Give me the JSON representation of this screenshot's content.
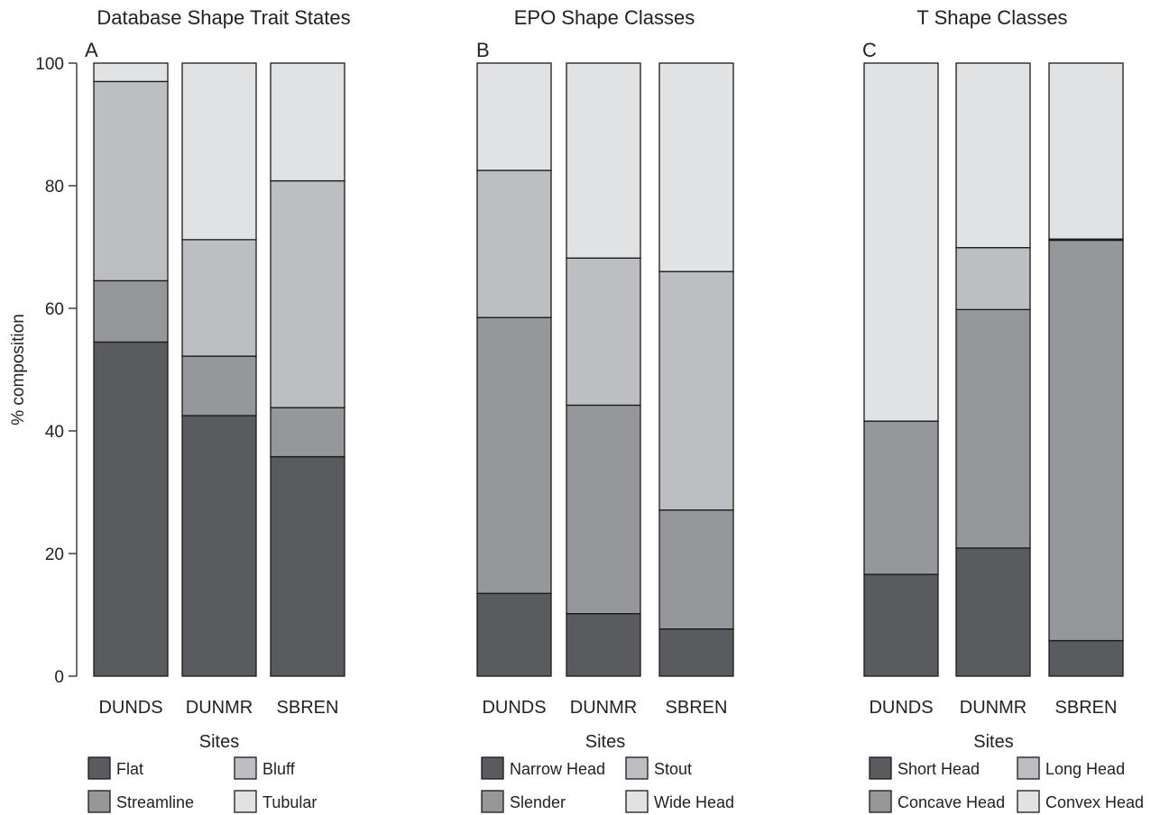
{
  "chart_data": [
    {
      "type": "bar",
      "stacked": true,
      "title": "Database Shape Trait States",
      "panel": "A",
      "xlabel": "Sites",
      "ylabel": "% composition",
      "ylim": [
        0,
        100
      ],
      "yticks": [
        0,
        20,
        40,
        60,
        80,
        100
      ],
      "categories": [
        "DUNDS",
        "DUNMR",
        "SBREN"
      ],
      "series": [
        {
          "name": "Flat",
          "values": [
            54.5,
            42.5,
            35.8
          ]
        },
        {
          "name": "Streamline",
          "values": [
            10.0,
            9.7,
            8.0
          ]
        },
        {
          "name": "Bluff",
          "values": [
            32.5,
            19.0,
            37.0
          ]
        },
        {
          "name": "Tubular",
          "values": [
            3.0,
            28.8,
            19.2
          ]
        }
      ],
      "legend": [
        {
          "name": "Flat",
          "color": "#5a5b5e"
        },
        {
          "name": "Bluff",
          "color": "#bdbec1"
        },
        {
          "name": "Streamline",
          "color": "#96979a"
        },
        {
          "name": "Tubular",
          "color": "#e1e2e4"
        }
      ]
    },
    {
      "type": "bar",
      "stacked": true,
      "title": "EPO Shape Classes",
      "panel": "B",
      "xlabel": "Sites",
      "ylim": [
        0,
        100
      ],
      "categories": [
        "DUNDS",
        "DUNMR",
        "SBREN"
      ],
      "series": [
        {
          "name": "Narrow Head",
          "values": [
            13.5,
            10.2,
            7.7
          ]
        },
        {
          "name": "Slender",
          "values": [
            45.0,
            34.0,
            19.4
          ]
        },
        {
          "name": "Stout",
          "values": [
            24.0,
            24.0,
            38.9
          ]
        },
        {
          "name": "Wide Head",
          "values": [
            17.5,
            31.8,
            34.0
          ]
        }
      ],
      "legend": [
        {
          "name": "Narrow Head",
          "color": "#5a5b5e"
        },
        {
          "name": "Stout",
          "color": "#bdbec1"
        },
        {
          "name": "Slender",
          "color": "#96979a"
        },
        {
          "name": "Wide Head",
          "color": "#e1e2e4"
        }
      ]
    },
    {
      "type": "bar",
      "stacked": true,
      "title": "T Shape Classes",
      "panel": "C",
      "xlabel": "Sites",
      "ylim": [
        0,
        100
      ],
      "categories": [
        "DUNDS",
        "DUNMR",
        "SBREN"
      ],
      "series": [
        {
          "name": "Short Head",
          "values": [
            16.6,
            20.9,
            5.8
          ]
        },
        {
          "name": "Concave Head",
          "values": [
            25.0,
            38.9,
            65.3
          ]
        },
        {
          "name": "Long Head",
          "values": [
            0,
            10.1,
            0.2
          ]
        },
        {
          "name": "Convex Head",
          "values": [
            58.4,
            30.1,
            28.7
          ]
        }
      ],
      "legend": [
        {
          "name": "Short Head",
          "color": "#5a5b5e"
        },
        {
          "name": "Long Head",
          "color": "#bdbec1"
        },
        {
          "name": "Concave Head",
          "color": "#96979a"
        },
        {
          "name": "Convex Head",
          "color": "#e1e2e4"
        }
      ]
    }
  ]
}
